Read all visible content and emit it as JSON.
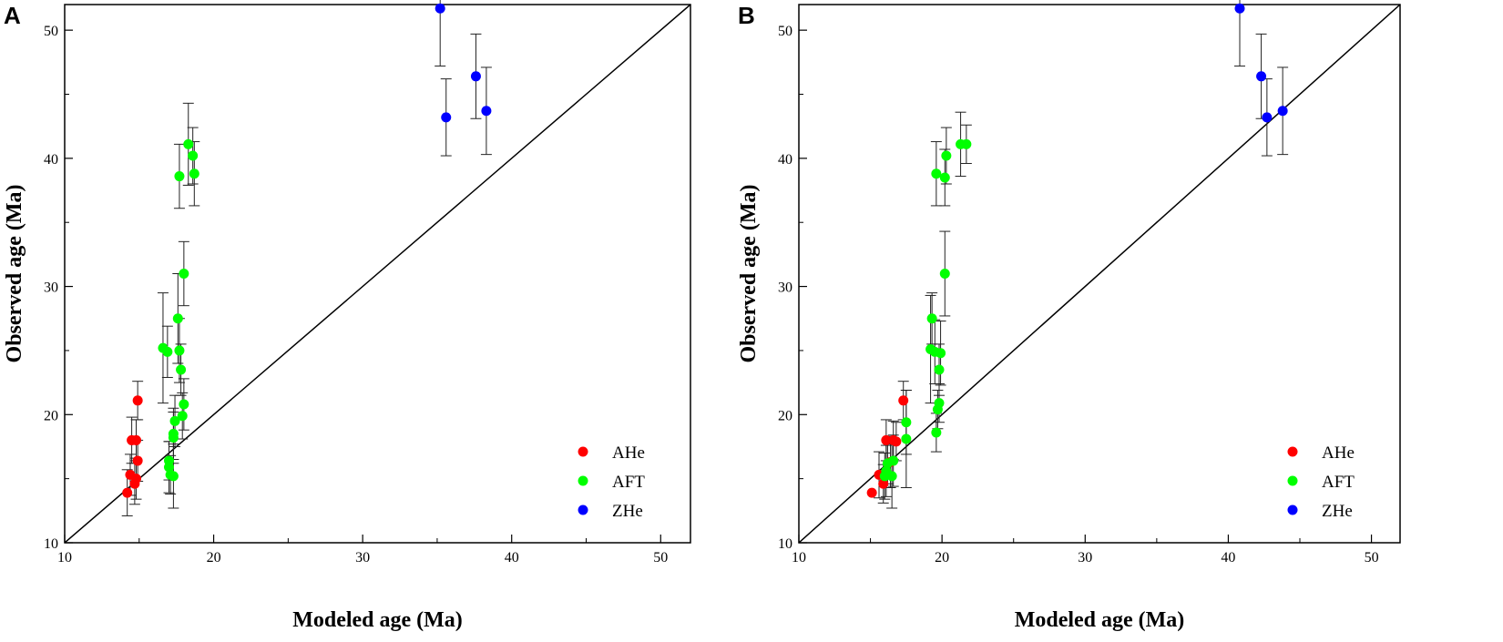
{
  "chart_data": [
    {
      "type": "scatter",
      "panel": "A",
      "xlabel": "Modeled age (Ma)",
      "ylabel": "Observed age (Ma)",
      "xlim": [
        10,
        52
      ],
      "ylim": [
        10,
        52
      ],
      "xticks": [
        10,
        20,
        30,
        40,
        50
      ],
      "yticks": [
        10,
        20,
        30,
        40,
        50
      ],
      "reference_line": "1:1",
      "legend_position": "bottom-right",
      "series": [
        {
          "name": "AHe",
          "color": "#ff0000",
          "points": [
            {
              "x": 14.2,
              "y": 13.9,
              "err": 1.8
            },
            {
              "x": 14.4,
              "y": 15.3,
              "err": 1.6
            },
            {
              "x": 14.5,
              "y": 18.0,
              "err": 1.8
            },
            {
              "x": 14.7,
              "y": 14.6,
              "err": 1.6
            },
            {
              "x": 14.8,
              "y": 15.0,
              "err": 1.6
            },
            {
              "x": 14.8,
              "y": 18.0,
              "err": 1.6
            },
            {
              "x": 14.9,
              "y": 21.1,
              "err": 1.5
            },
            {
              "x": 14.9,
              "y": 16.4,
              "err": 1.6
            }
          ]
        },
        {
          "name": "AFT",
          "color": "#00ff00",
          "points": [
            {
              "x": 16.6,
              "y": 25.2,
              "err": 4.3
            },
            {
              "x": 16.9,
              "y": 24.9,
              "err": 2.0
            },
            {
              "x": 17.0,
              "y": 15.9,
              "err": 2.0
            },
            {
              "x": 17.0,
              "y": 16.4,
              "err": 1.5
            },
            {
              "x": 17.1,
              "y": 15.3,
              "err": 1.5
            },
            {
              "x": 17.3,
              "y": 15.2,
              "err": 2.5
            },
            {
              "x": 17.3,
              "y": 18.2,
              "err": 2.0
            },
            {
              "x": 17.3,
              "y": 18.5,
              "err": 2.0
            },
            {
              "x": 17.4,
              "y": 19.5,
              "err": 2.0
            },
            {
              "x": 17.6,
              "y": 27.5,
              "err": 3.5
            },
            {
              "x": 17.7,
              "y": 38.6,
              "err": 2.5
            },
            {
              "x": 17.7,
              "y": 25.0,
              "err": 2.5
            },
            {
              "x": 17.8,
              "y": 23.5,
              "err": 2.0
            },
            {
              "x": 17.9,
              "y": 19.9,
              "err": 1.8
            },
            {
              "x": 18.0,
              "y": 20.8,
              "err": 2.0
            },
            {
              "x": 18.0,
              "y": 31.0,
              "err": 2.5
            },
            {
              "x": 18.3,
              "y": 41.1,
              "err": 3.2
            },
            {
              "x": 18.6,
              "y": 40.2,
              "err": 2.2
            },
            {
              "x": 18.7,
              "y": 38.8,
              "err": 2.5
            }
          ]
        },
        {
          "name": "ZHe",
          "color": "#0000ff",
          "points": [
            {
              "x": 35.2,
              "y": 51.7,
              "err": 4.5
            },
            {
              "x": 35.6,
              "y": 43.2,
              "err": 3.0
            },
            {
              "x": 37.6,
              "y": 46.4,
              "err": 3.3
            },
            {
              "x": 38.3,
              "y": 43.7,
              "err": 3.4
            }
          ]
        }
      ]
    },
    {
      "type": "scatter",
      "panel": "B",
      "xlabel": "Modeled age (Ma)",
      "ylabel": "Observed age (Ma)",
      "xlim": [
        10,
        52
      ],
      "ylim": [
        10,
        52
      ],
      "xticks": [
        10,
        20,
        30,
        40,
        50
      ],
      "yticks": [
        10,
        20,
        30,
        40,
        50
      ],
      "reference_line": "1:1",
      "legend_position": "bottom-right",
      "series": [
        {
          "name": "AHe",
          "color": "#ff0000",
          "points": [
            {
              "x": 15.1,
              "y": 13.9,
              "err": 0
            },
            {
              "x": 15.6,
              "y": 15.3,
              "err": 1.8
            },
            {
              "x": 15.9,
              "y": 14.6,
              "err": 1.5
            },
            {
              "x": 16.1,
              "y": 18.0,
              "err": 1.6
            },
            {
              "x": 16.4,
              "y": 16.3,
              "err": 2.0
            },
            {
              "x": 16.6,
              "y": 18.0,
              "err": 1.5
            },
            {
              "x": 16.8,
              "y": 17.9,
              "err": 1.5
            },
            {
              "x": 17.3,
              "y": 21.1,
              "err": 1.5
            }
          ]
        },
        {
          "name": "AFT",
          "color": "#00ff00",
          "points": [
            {
              "x": 16.0,
              "y": 15.2,
              "err": 1.8
            },
            {
              "x": 16.1,
              "y": 15.6,
              "err": 2.0
            },
            {
              "x": 16.2,
              "y": 16.2,
              "err": 1.6
            },
            {
              "x": 16.5,
              "y": 15.2,
              "err": 2.5
            },
            {
              "x": 16.6,
              "y": 16.4,
              "err": 2.0
            },
            {
              "x": 17.5,
              "y": 18.1,
              "err": 3.8
            },
            {
              "x": 17.5,
              "y": 19.4,
              "err": 2.5
            },
            {
              "x": 19.2,
              "y": 25.1,
              "err": 4.2
            },
            {
              "x": 19.3,
              "y": 27.5,
              "err": 2.0
            },
            {
              "x": 19.5,
              "y": 24.9,
              "err": 2.5
            },
            {
              "x": 19.6,
              "y": 18.6,
              "err": 1.5
            },
            {
              "x": 19.6,
              "y": 38.8,
              "err": 2.5
            },
            {
              "x": 19.7,
              "y": 20.4,
              "err": 1.5
            },
            {
              "x": 19.8,
              "y": 20.9,
              "err": 1.5
            },
            {
              "x": 19.8,
              "y": 23.5,
              "err": 2.0
            },
            {
              "x": 19.9,
              "y": 24.8,
              "err": 2.5
            },
            {
              "x": 20.2,
              "y": 31.0,
              "err": 3.3
            },
            {
              "x": 20.2,
              "y": 38.5,
              "err": 2.2
            },
            {
              "x": 20.3,
              "y": 40.2,
              "err": 2.2
            },
            {
              "x": 21.3,
              "y": 41.1,
              "err": 2.5
            },
            {
              "x": 21.7,
              "y": 41.1,
              "err": 1.5
            }
          ]
        },
        {
          "name": "ZHe",
          "color": "#0000ff",
          "points": [
            {
              "x": 40.8,
              "y": 51.7,
              "err": 4.5
            },
            {
              "x": 42.3,
              "y": 46.4,
              "err": 3.3
            },
            {
              "x": 42.7,
              "y": 43.2,
              "err": 3.0
            },
            {
              "x": 43.8,
              "y": 43.7,
              "err": 3.4
            }
          ]
        }
      ]
    }
  ]
}
